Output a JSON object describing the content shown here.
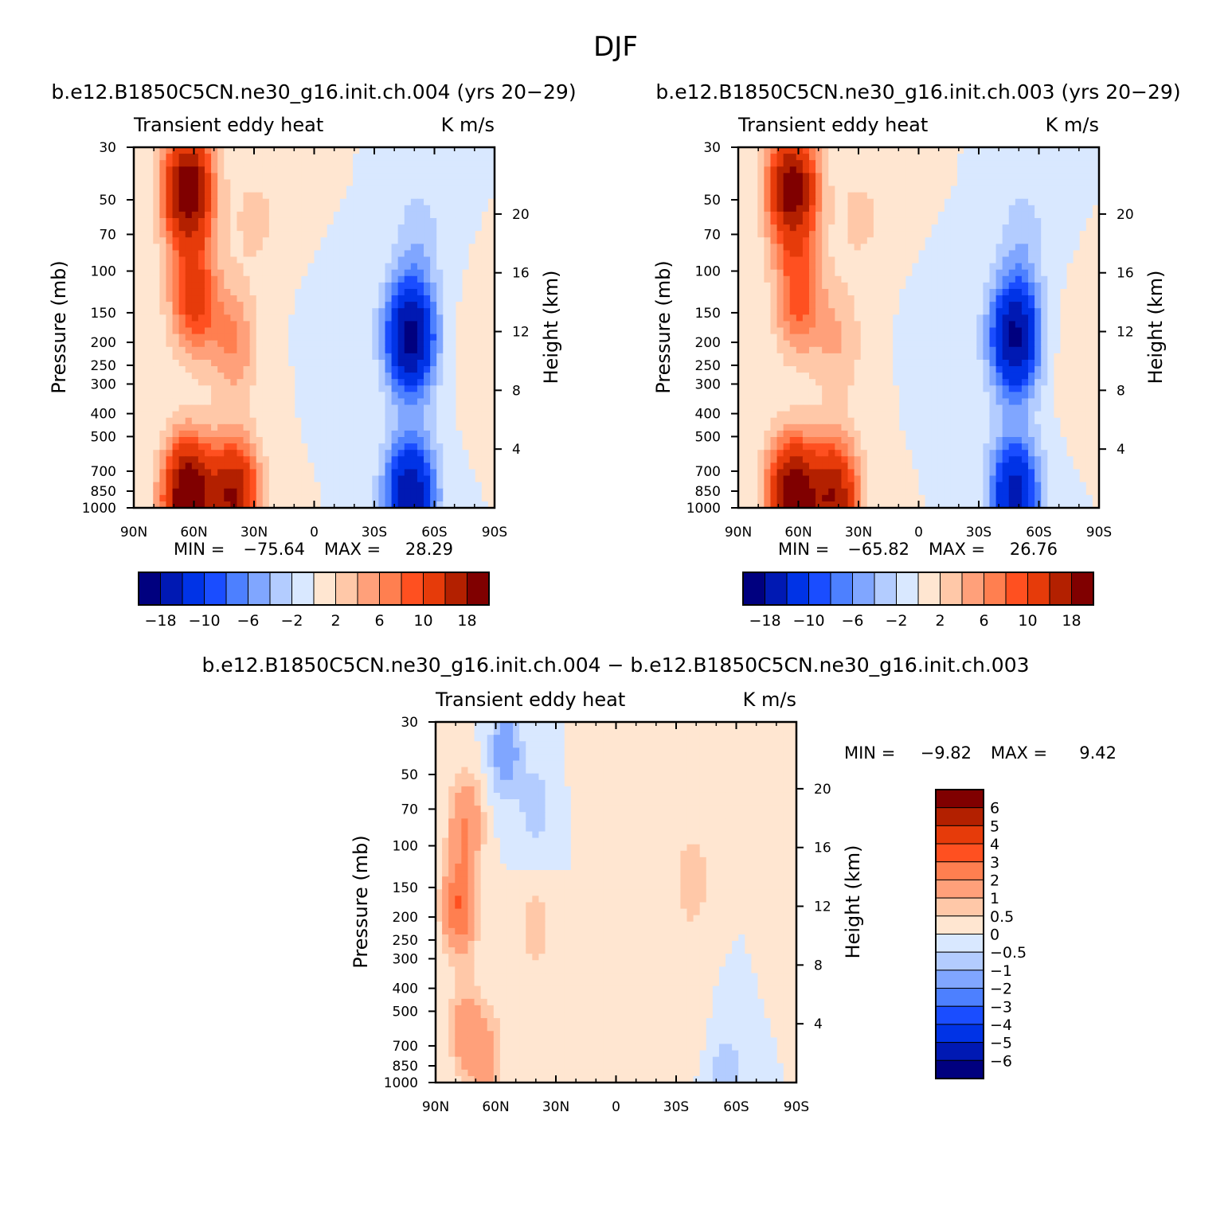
{
  "figure": {
    "title": "DJF"
  },
  "colors": {
    "blues": [
      "#00007f",
      "#0019b3",
      "#0033e6",
      "#1a4dff",
      "#4d80ff",
      "#80a6ff",
      "#b3ccff",
      "#d9e8ff"
    ],
    "reds": [
      "#ffe6d1",
      "#ffc8a8",
      "#ffa07a",
      "#ff7f50",
      "#ff5020",
      "#e63b0a",
      "#b32000",
      "#800000"
    ]
  },
  "chart_data": [
    {
      "type": "heatmap",
      "subtitle": "b.e12.B1850C5CN.ne30_g16.init.ch.004 (yrs 20-29)",
      "title": "Transient eddy heat",
      "units": "K m/s",
      "ylabel": "Pressure (mb)",
      "ylabel_right": "Height (km)",
      "x_ticks": [
        "90N",
        "60N",
        "30N",
        "0",
        "30S",
        "60S",
        "90S"
      ],
      "y_ticks": [
        30,
        50,
        70,
        100,
        150,
        200,
        250,
        300,
        400,
        500,
        700,
        850,
        1000
      ],
      "height_ticks": [
        4,
        8,
        12,
        16,
        20
      ],
      "stats": {
        "min_label": "MIN =",
        "min": "-75.64",
        "max_label": "MAX =",
        "max": "28.29"
      },
      "colorbar_labels": [
        "-18",
        "-10",
        "-6",
        "-2",
        "2",
        "6",
        "10",
        "18"
      ],
      "features": [
        {
          "lat": 63,
          "p": 45,
          "value": 22
        },
        {
          "lat": 60,
          "p": 130,
          "value": 11
        },
        {
          "lat": 63,
          "p": 900,
          "value": 24
        },
        {
          "lat": 40,
          "p": 900,
          "value": 18
        },
        {
          "lat": 40,
          "p": 200,
          "value": 6
        },
        {
          "lat": 30,
          "p": 60,
          "value": 2.5
        },
        {
          "lat": 10,
          "p": 50,
          "value": 1
        },
        {
          "lat": -10,
          "p": 150,
          "value": -1
        },
        {
          "lat": -48,
          "p": 190,
          "value": -20
        },
        {
          "lat": -48,
          "p": 880,
          "value": -18
        },
        {
          "lat": -52,
          "p": 70,
          "value": -3
        },
        {
          "lat": -80,
          "p": 230,
          "value": 1
        }
      ]
    },
    {
      "type": "heatmap",
      "subtitle": "b.e12.B1850C5CN.ne30_g16.init.ch.003 (yrs 20-29)",
      "title": "Transient eddy heat",
      "units": "K m/s",
      "ylabel": "Pressure (mb)",
      "ylabel_right": "Height (km)",
      "x_ticks": [
        "90N",
        "60N",
        "30N",
        "0",
        "30S",
        "60S",
        "90S"
      ],
      "y_ticks": [
        30,
        50,
        70,
        100,
        150,
        200,
        250,
        300,
        400,
        500,
        700,
        850,
        1000
      ],
      "height_ticks": [
        4,
        8,
        12,
        16,
        20
      ],
      "stats": {
        "min_label": "MIN =",
        "min": "-65.82",
        "max_label": "MAX =",
        "max": "26.76"
      },
      "colorbar_labels": [
        "-18",
        "-10",
        "-6",
        "-2",
        "2",
        "6",
        "10",
        "18"
      ],
      "features": [
        {
          "lat": 63,
          "p": 45,
          "value": 21
        },
        {
          "lat": 60,
          "p": 130,
          "value": 9
        },
        {
          "lat": 63,
          "p": 900,
          "value": 22
        },
        {
          "lat": 42,
          "p": 900,
          "value": 17
        },
        {
          "lat": 40,
          "p": 200,
          "value": 4
        },
        {
          "lat": 30,
          "p": 60,
          "value": 2.5
        },
        {
          "lat": 10,
          "p": 50,
          "value": 1
        },
        {
          "lat": -10,
          "p": 150,
          "value": -1
        },
        {
          "lat": -48,
          "p": 190,
          "value": -19
        },
        {
          "lat": -48,
          "p": 880,
          "value": -16
        },
        {
          "lat": -52,
          "p": 70,
          "value": -3
        },
        {
          "lat": -75,
          "p": 230,
          "value": 1
        }
      ]
    },
    {
      "type": "heatmap",
      "subtitle": "b.e12.B1850C5CN.ne30_g16.init.ch.004 - b.e12.B1850C5CN.ne30_g16.init.ch.003",
      "title": "Transient eddy heat",
      "units": "K m/s",
      "ylabel": "Pressure (mb)",
      "ylabel_right": "Height (km)",
      "x_ticks": [
        "90N",
        "60N",
        "30N",
        "0",
        "30S",
        "60S",
        "90S"
      ],
      "y_ticks": [
        30,
        50,
        70,
        100,
        150,
        200,
        250,
        300,
        400,
        500,
        700,
        850,
        1000
      ],
      "height_ticks": [
        4,
        8,
        12,
        16,
        20
      ],
      "stats": {
        "min_label": "MIN =",
        "min": "-9.82",
        "max_label": "MAX =",
        "max": "9.42"
      },
      "colorbar_labels": [
        "6",
        "5",
        "4",
        "3",
        "2",
        "1",
        "0.5",
        "0",
        "-0.5",
        "-1",
        "-2",
        "-3",
        "-4",
        "-5",
        "-6"
      ],
      "features": [
        {
          "lat": 78,
          "p": 180,
          "value": 3
        },
        {
          "lat": 75,
          "p": 80,
          "value": 2
        },
        {
          "lat": 75,
          "p": 600,
          "value": 1.5
        },
        {
          "lat": 65,
          "p": 800,
          "value": 1.5
        },
        {
          "lat": 55,
          "p": 40,
          "value": -1.5
        },
        {
          "lat": 40,
          "p": 70,
          "value": -0.8
        },
        {
          "lat": 40,
          "p": 220,
          "value": 0.8
        },
        {
          "lat": 10,
          "p": 50,
          "value": 0.3
        },
        {
          "lat": -15,
          "p": 70,
          "value": 0.3
        },
        {
          "lat": -38,
          "p": 140,
          "value": 1
        },
        {
          "lat": -35,
          "p": 500,
          "value": 0.4
        },
        {
          "lat": -55,
          "p": 980,
          "value": -1
        },
        {
          "lat": -88,
          "p": 200,
          "value": 0.3
        }
      ]
    }
  ]
}
